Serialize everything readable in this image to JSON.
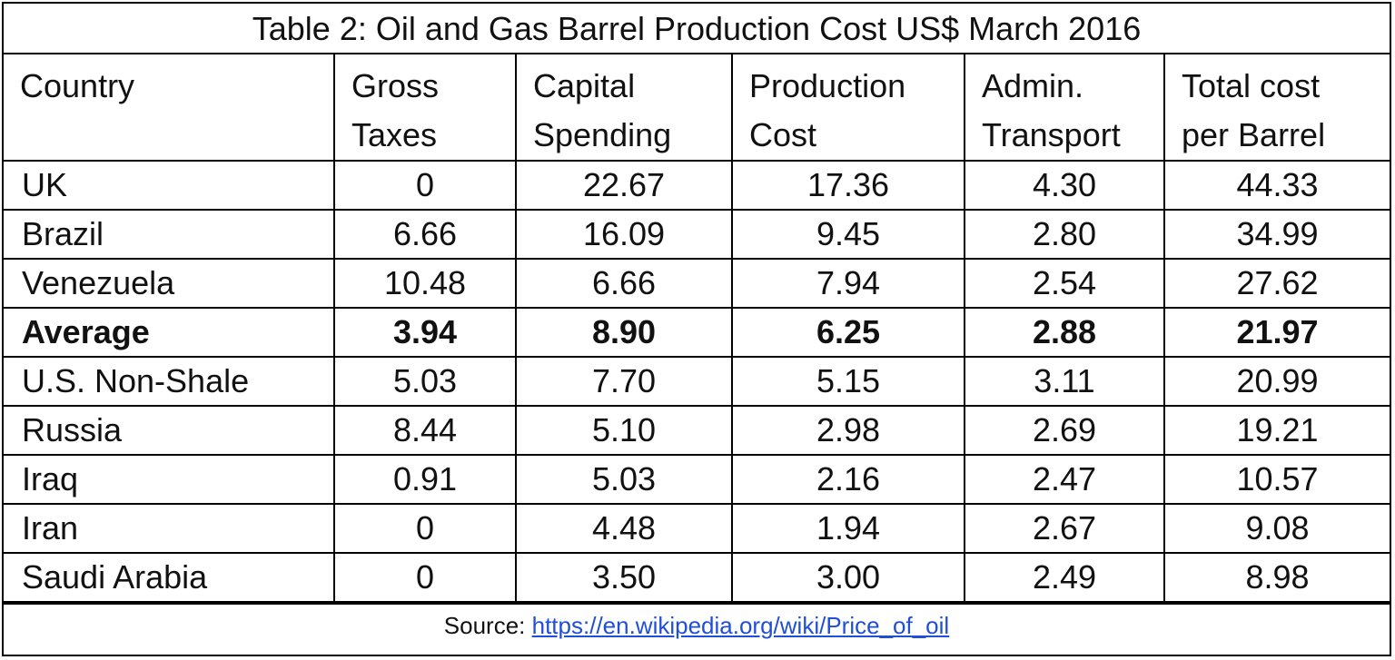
{
  "title": "Table 2: Oil and Gas Barrel Production Cost US$ March 2016",
  "headers": [
    {
      "line1": "Country",
      "line2": ""
    },
    {
      "line1": "Gross",
      "line2": "Taxes"
    },
    {
      "line1": "Capital",
      "line2": "Spending"
    },
    {
      "line1": "Production",
      "line2": "Cost"
    },
    {
      "line1": "Admin.",
      "line2": "Transport"
    },
    {
      "line1": "Total cost",
      "line2": "per Barrel"
    }
  ],
  "rows": [
    {
      "country": "UK",
      "gross_taxes": "0",
      "capital_spending": "22.67",
      "production_cost": "17.36",
      "admin_transport": "4.30",
      "total_cost": "44.33"
    },
    {
      "country": "Brazil",
      "gross_taxes": "6.66",
      "capital_spending": "16.09",
      "production_cost": "9.45",
      "admin_transport": "2.80",
      "total_cost": "34.99"
    },
    {
      "country": "Venezuela",
      "gross_taxes": "10.48",
      "capital_spending": "6.66",
      "production_cost": "7.94",
      "admin_transport": "2.54",
      "total_cost": "27.62"
    },
    {
      "country": "Average",
      "gross_taxes": "3.94",
      "capital_spending": "8.90",
      "production_cost": "6.25",
      "admin_transport": "2.88",
      "total_cost": "21.97"
    },
    {
      "country": "U.S. Non-Shale",
      "gross_taxes": "5.03",
      "capital_spending": "7.70",
      "production_cost": "5.15",
      "admin_transport": "3.11",
      "total_cost": "20.99"
    },
    {
      "country": "Russia",
      "gross_taxes": "8.44",
      "capital_spending": "5.10",
      "production_cost": "2.98",
      "admin_transport": "2.69",
      "total_cost": "19.21"
    },
    {
      "country": "Iraq",
      "gross_taxes": "0.91",
      "capital_spending": "5.03",
      "production_cost": "2.16",
      "admin_transport": "2.47",
      "total_cost": "10.57"
    },
    {
      "country": "Iran",
      "gross_taxes": "0",
      "capital_spending": "4.48",
      "production_cost": "1.94",
      "admin_transport": "2.67",
      "total_cost": "9.08"
    },
    {
      "country": "Saudi Arabia",
      "gross_taxes": "0",
      "capital_spending": "3.50",
      "production_cost": "3.00",
      "admin_transport": "2.49",
      "total_cost": "8.98"
    }
  ],
  "source": {
    "label": "Source: ",
    "link_text": "https://en.wikipedia.org/wiki/Price_of_oil"
  },
  "colors": {
    "link": "#1f4fd6",
    "border": "#000000"
  }
}
